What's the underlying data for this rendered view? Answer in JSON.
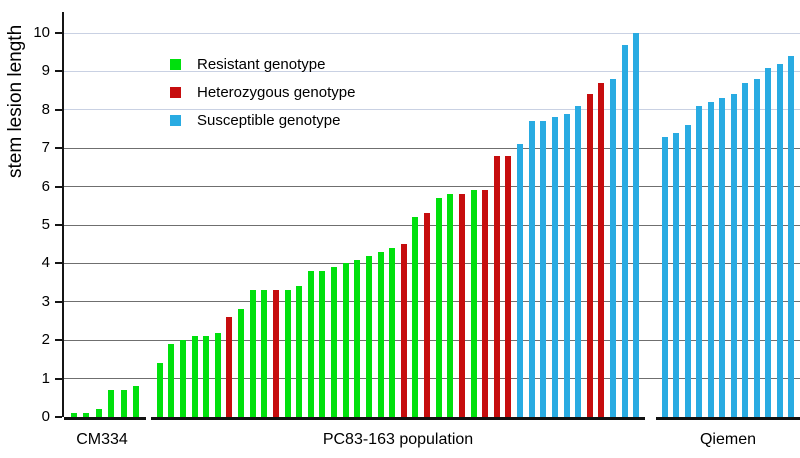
{
  "chart_data": {
    "type": "bar",
    "title": "",
    "ylabel": "stem lesion length",
    "xlabel": "",
    "ylim": [
      0,
      10
    ],
    "yticks": [
      0,
      1,
      2,
      3,
      4,
      5,
      6,
      7,
      8,
      9,
      10
    ],
    "grid": "horizontal",
    "legend_position": "inside-upper-left",
    "colors": {
      "R": "#00e00d",
      "H": "#c60d0e",
      "S": "#29abe2",
      "grid_dark": "#6f6f6f",
      "grid_light": "#c9d1e3",
      "axis": "#111111"
    },
    "legend": [
      {
        "code": "R",
        "label": "Resistant genotype"
      },
      {
        "code": "H",
        "label": "Heterozygous genotype"
      },
      {
        "code": "S",
        "label": "Susceptible genotype"
      }
    ],
    "groups": [
      {
        "label": "CM334",
        "values": [
          0.1,
          0.1,
          0.2,
          0.7,
          0.7,
          0.8
        ],
        "genotypes": [
          "R",
          "R",
          "R",
          "R",
          "R",
          "R"
        ]
      },
      {
        "label": "PC83-163 population",
        "values": [
          1.4,
          1.9,
          2.0,
          2.1,
          2.1,
          2.2,
          2.6,
          2.8,
          3.3,
          3.3,
          3.3,
          3.3,
          3.4,
          3.8,
          3.8,
          3.9,
          4.0,
          4.1,
          4.2,
          4.3,
          4.4,
          4.5,
          5.2,
          5.3,
          5.7,
          5.8,
          5.8,
          5.9,
          5.9,
          6.8,
          6.8,
          7.1,
          7.7,
          7.7,
          7.8,
          7.9,
          8.1,
          8.4,
          8.7,
          8.8,
          9.7,
          10.0
        ],
        "genotypes": [
          "R",
          "R",
          "R",
          "R",
          "R",
          "R",
          "H",
          "R",
          "R",
          "R",
          "H",
          "R",
          "R",
          "R",
          "R",
          "R",
          "R",
          "R",
          "R",
          "R",
          "R",
          "H",
          "R",
          "H",
          "R",
          "R",
          "H",
          "R",
          "H",
          "H",
          "H",
          "S",
          "S",
          "S",
          "S",
          "S",
          "S",
          "H",
          "H",
          "S",
          "S",
          "S"
        ]
      },
      {
        "label": "Qiemen",
        "values": [
          7.3,
          7.4,
          7.6,
          8.1,
          8.2,
          8.3,
          8.4,
          8.7,
          8.8,
          9.1,
          9.2,
          9.4
        ],
        "genotypes": [
          "S",
          "S",
          "S",
          "S",
          "S",
          "S",
          "S",
          "S",
          "S",
          "S",
          "S",
          "S"
        ]
      }
    ]
  }
}
